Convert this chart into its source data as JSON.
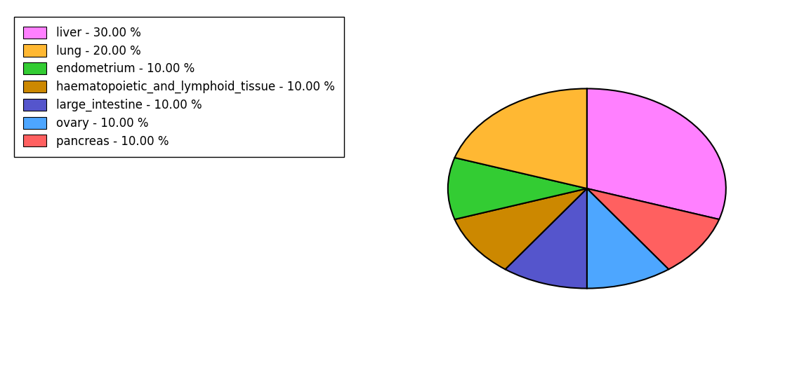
{
  "labels": [
    "liver",
    "pancreas",
    "ovary",
    "large_intestine",
    "haematopoietic_and_lymphoid_tissue",
    "endometrium",
    "lung"
  ],
  "values": [
    30,
    10,
    10,
    10,
    10,
    10,
    20
  ],
  "colors": [
    "#FF80FF",
    "#FF6060",
    "#4DA6FF",
    "#5555CC",
    "#CC8800",
    "#33CC33",
    "#FFB833"
  ],
  "legend_labels": [
    "liver - 30.00 %",
    "lung - 20.00 %",
    "endometrium - 10.00 %",
    "haematopoietic_and_lymphoid_tissue - 10.00 %",
    "large_intestine - 10.00 %",
    "ovary - 10.00 %",
    "pancreas - 10.00 %"
  ],
  "legend_colors": [
    "#FF80FF",
    "#FFB833",
    "#33CC33",
    "#CC8800",
    "#5555CC",
    "#4DA6FF",
    "#FF6060"
  ],
  "startangle": 90,
  "background_color": "#FFFFFF",
  "edgecolor": "#000000",
  "linewidth": 1.5
}
